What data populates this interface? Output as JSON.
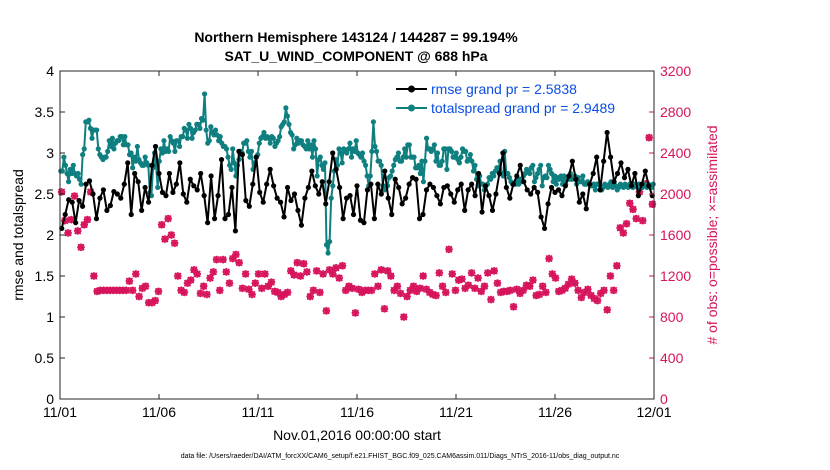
{
  "chart_data": {
    "type": "line",
    "title_line1": "Northern Hemisphere 143124 / 144287 = 99.194%",
    "title_line2": "SAT_U_WIND_COMPONENT @ 688 hPa",
    "xlabel": "Nov.01,2016 00:00:00 start",
    "ylabel_left": "rmse and totalspread",
    "ylabel_right": "# of obs: o=possible; ×=assimilated",
    "footer": "data file: /Users/raeder/DAI/ATM_forcXX/CAM6_setup/f.e21.FHIST_BGC.f09_025.CAM6assim.011/Diags_NTrS_2016-11/obs_diag_output.nc",
    "xlim": [
      0,
      30
    ],
    "ylim_left": [
      0,
      4
    ],
    "ylim_right": [
      0,
      3200
    ],
    "x_ticks": [
      0,
      5,
      10,
      15,
      20,
      25,
      30
    ],
    "x_tick_labels": [
      "11/01",
      "11/06",
      "11/11",
      "11/16",
      "11/21",
      "11/26",
      "12/01"
    ],
    "y_ticks_left": [
      "0",
      "0.5",
      "1",
      "1.5",
      "2",
      "2.5",
      "3",
      "3.5",
      "4"
    ],
    "y_ticks_right": [
      "0",
      "400",
      "800",
      "1200",
      "1600",
      "2000",
      "2400",
      "2800",
      "3200"
    ],
    "colors": {
      "rmse": "#000000",
      "spread": "#0f7f80",
      "obs": "#d6145c",
      "legend_text": "#0a4ee6"
    },
    "series": [
      {
        "name": "rmse",
        "legend": "rmse grand pr = 2.5838",
        "axis": "left",
        "values": [
          2.08,
          2.25,
          2.43,
          2.4,
          2.15,
          2.42,
          2.35,
          2.62,
          2.66,
          2.5,
          2.2,
          2.45,
          2.55,
          2.3,
          2.36,
          2.53,
          2.5,
          2.45,
          2.62,
          2.88,
          2.25,
          2.75,
          2.65,
          2.3,
          2.58,
          2.4,
          2.85,
          3.08,
          2.75,
          2.52,
          2.48,
          2.75,
          2.52,
          2.62,
          2.88,
          2.5,
          2.4,
          2.68,
          2.6,
          2.55,
          2.75,
          2.48,
          2.15,
          2.72,
          2.2,
          2.48,
          2.92,
          2.2,
          2.25,
          2.58,
          2.05,
          3.02,
          2.98,
          2.42,
          2.35,
          2.62,
          2.95,
          2.52,
          2.4,
          2.62,
          2.8,
          2.6,
          2.45,
          2.4,
          2.22,
          2.58,
          2.42,
          2.5,
          2.3,
          2.12,
          2.45,
          2.58,
          2.78,
          2.6,
          2.5,
          2.65,
          2.38,
          2.65,
          3.0,
          2.8,
          2.58,
          2.2,
          2.45,
          2.48,
          2.25,
          2.6,
          2.18,
          2.15,
          2.55,
          2.62,
          2.2,
          2.62,
          2.5,
          2.78,
          2.45,
          2.25,
          2.68,
          2.58,
          2.38,
          2.45,
          2.62,
          2.7,
          2.68,
          2.2,
          2.25,
          2.55,
          2.62,
          2.58,
          2.48,
          2.38,
          2.58,
          2.6,
          2.5,
          2.4,
          2.55,
          2.62,
          2.3,
          2.55,
          2.62,
          2.48,
          2.75,
          2.28,
          2.6,
          2.48,
          2.3,
          2.5,
          2.75,
          3.0,
          2.58,
          2.45,
          2.62,
          2.72,
          2.85,
          2.65,
          2.55,
          2.5,
          2.58,
          2.52,
          2.22,
          2.08,
          2.38,
          2.58,
          2.52,
          2.55,
          2.48,
          2.6,
          2.72,
          2.9,
          2.68,
          2.4,
          2.5,
          2.32,
          2.62,
          2.75,
          2.95,
          2.55,
          2.9,
          3.25,
          2.95,
          2.65,
          2.75,
          2.88,
          2.7,
          2.8,
          2.6,
          2.75,
          2.48,
          2.62,
          2.78,
          2.6,
          2.48
        ]
      },
      {
        "name": "totalspread",
        "legend": "totalspread grand pr = 2.9489",
        "axis": "left",
        "values": [
          2.78,
          2.78,
          2.95,
          2.85,
          2.75,
          2.65,
          2.8,
          2.75,
          2.85,
          2.75,
          2.72,
          2.75,
          2.68,
          2.62,
          2.98,
          3.05,
          3.38,
          3.38,
          3.4,
          3.3,
          3.18,
          3.28,
          3.28,
          3.28,
          3.05,
          2.98,
          2.95,
          2.92,
          2.95,
          2.95,
          3.02,
          3.15,
          3.08,
          3.18,
          3.05,
          3.12,
          3.15,
          3.15,
          3.2,
          3.2,
          3.1,
          3.2,
          3.1,
          3.1,
          2.98,
          3.0,
          2.82,
          2.95,
          2.9,
          3.08,
          2.92,
          2.88,
          2.85,
          2.85,
          2.95,
          2.88,
          2.85,
          2.52,
          2.48,
          2.82,
          3.0,
          2.85,
          2.58,
          2.9,
          3.05,
          3.0,
          3.15,
          3.02,
          3.05,
          3.02,
          3.2,
          3.15,
          3.12,
          3.02,
          3.15,
          3.15,
          3.08,
          3.2,
          3.2,
          3.3,
          3.28,
          3.18,
          3.35,
          3.3,
          3.18,
          3.25,
          3.28,
          3.35,
          3.35,
          3.3,
          3.42,
          3.4,
          3.72,
          3.28,
          3.12,
          3.15,
          3.32,
          3.25,
          3.22,
          3.28,
          3.22,
          3.15,
          3.2,
          3.12,
          3.08,
          3.08,
          3.05,
          2.95,
          2.85,
          2.8,
          3.05,
          2.88,
          2.72,
          2.85,
          2.92,
          3.02,
          3.0,
          3.12,
          3.12,
          3.15,
          3.02,
          2.95,
          3.02,
          2.8,
          2.88,
          2.95,
          2.98,
          3.12,
          3.18,
          3.2,
          3.25,
          3.18,
          3.2,
          3.18,
          3.12,
          3.2,
          3.18,
          3.08,
          3.12,
          3.15,
          3.2,
          3.32,
          3.35,
          3.38,
          3.55,
          3.45,
          3.35,
          3.25,
          3.22,
          3.05,
          3.1,
          3.18,
          3.12,
          3.15,
          3.15,
          3.1,
          3.08,
          3.05,
          3.15,
          3.05,
          3.1,
          2.95,
          3.15,
          3.05,
          2.72,
          2.92,
          2.95,
          2.85,
          2.8,
          2.88,
          1.88,
          1.78,
          1.92,
          2.45,
          2.6,
          2.78,
          2.92,
          2.85,
          3.05,
          3.0,
          2.88,
          3.05,
          3.02,
          3.0,
          3.05,
          3.12,
          2.95,
          3.05,
          3.02,
          3.15,
          3.0,
          2.98,
          2.95,
          3.0,
          2.9,
          2.85,
          2.72,
          2.6,
          2.72,
          3.02,
          3.38,
          3.08,
          3.02,
          2.9,
          2.9,
          2.85,
          2.6,
          2.55,
          2.6,
          2.6,
          2.7,
          2.72,
          2.78,
          2.85,
          2.92,
          2.95,
          3.0,
          2.9,
          2.9,
          2.95,
          3.05,
          2.95,
          3.1,
          3.1,
          2.95,
          2.95,
          2.95,
          2.82,
          2.82,
          2.85,
          2.75,
          2.9,
          2.65,
          2.9,
          3.18,
          3.05,
          3.05,
          3.02,
          3.05,
          3.1,
          2.9,
          3.0,
          2.85,
          2.85,
          2.9,
          3.05,
          3.05,
          2.8,
          3.05,
          3.05,
          3.02,
          2.95,
          2.95,
          3.0,
          2.92,
          2.88,
          2.95,
          3.05,
          3.02,
          3.02,
          2.9,
          2.92,
          2.98,
          2.9,
          2.78,
          2.85,
          2.68,
          2.6,
          2.72,
          2.62,
          2.62,
          2.55,
          2.6,
          2.62,
          2.7,
          2.68,
          2.75,
          2.72,
          2.78,
          2.82,
          2.8,
          2.9,
          2.75,
          2.72,
          3.02,
          2.75,
          2.75,
          2.7,
          2.65,
          2.62,
          2.62,
          2.62,
          2.68,
          2.62,
          2.68,
          2.65,
          2.72,
          2.75,
          2.8,
          2.78,
          2.75,
          2.82,
          2.85,
          2.65,
          2.7,
          2.75,
          2.8,
          2.85,
          2.6,
          2.7,
          2.72,
          2.7,
          2.85,
          2.8,
          2.75,
          2.65,
          2.72,
          2.62,
          2.7,
          2.68,
          2.72,
          2.62,
          2.72,
          2.62,
          2.7,
          2.68,
          2.75,
          2.68,
          2.7,
          2.72,
          2.62,
          2.7,
          2.65,
          2.65,
          2.72,
          2.62,
          2.62,
          2.65,
          2.62,
          2.6,
          2.6,
          2.62,
          2.55,
          2.62,
          2.62,
          2.6,
          2.55,
          2.58,
          2.62,
          2.6,
          2.58,
          2.62,
          2.65,
          2.58,
          2.62,
          2.6,
          2.55,
          2.58,
          2.62,
          2.6,
          2.58,
          2.62,
          2.6,
          2.58,
          2.62,
          2.6,
          2.58,
          2.62,
          2.6,
          2.58,
          2.62,
          2.6,
          2.58,
          2.62,
          2.6,
          2.58,
          2.62,
          2.6,
          2.58,
          2.62
        ]
      },
      {
        "name": "obs_possible",
        "axis": "right",
        "values": [
          2020,
          1740,
          1620,
          1750,
          1980,
          1640,
          1480,
          1700,
          1750,
          2020,
          1200,
          1050,
          1060,
          1060,
          1060,
          1060,
          1060,
          1060,
          1060,
          1060,
          1060,
          1150,
          1060,
          1220,
          1000,
          1080,
          1100,
          940,
          940,
          960,
          1050,
          1700,
          1560,
          1760,
          1600,
          1520,
          1200,
          1060,
          1040,
          1130,
          1160,
          1260,
          1220,
          1030,
          1100,
          1020,
          1180,
          1240,
          1360,
          1060,
          1360,
          1240,
          1130,
          1370,
          1410,
          1330,
          1080,
          1220,
          1070,
          1020,
          1130,
          1220,
          1080,
          1220,
          1100,
          1140,
          1050,
          1040,
          1000,
          1020,
          1040,
          1250,
          1210,
          1330,
          1200,
          1320,
          1240,
          1000,
          1060,
          1250,
          1040,
          1220,
          860,
          1260,
          1220,
          1280,
          1180,
          1300,
          1060,
          1100,
          1080,
          840,
          1070,
          1040,
          1060,
          1060,
          1060,
          1220,
          1100,
          1260,
          880,
          1250,
          1200,
          1060,
          1100,
          1030,
          800,
          1000,
          1060,
          1100,
          1050,
          1080,
          1200,
          1070,
          1040,
          1020,
          1010,
          1230,
          1100,
          1040,
          1460,
          1220,
          1060,
          1160,
          1170,
          1080,
          1110,
          1230,
          1080,
          1180,
          1050,
          1100,
          1230,
          970,
          1250,
          1130,
          1040,
          1050,
          1050,
          1060,
          900,
          1070,
          1030,
          1060,
          1110,
          1100,
          1160,
          1010,
          1020,
          1100,
          1040,
          1370,
          1220,
          1180,
          1050,
          1060,
          1080,
          1120,
          1170,
          1130,
          1060,
          990,
          1040,
          1070,
          1010,
          980,
          960,
          1030,
          1060,
          870,
          1200,
          1060,
          1300,
          1670,
          1620,
          1710,
          1910,
          1850,
          1760,
          2020,
          1740,
          2100,
          2550,
          1900
        ]
      },
      {
        "name": "obs_assimilated",
        "axis": "right",
        "values": [
          2020,
          1740,
          1620,
          1750,
          1980,
          1640,
          1480,
          1700,
          1750,
          2020,
          1200,
          1050,
          1060,
          1060,
          1060,
          1060,
          1060,
          1060,
          1060,
          1060,
          1060,
          1150,
          1060,
          1220,
          1000,
          1080,
          1100,
          940,
          940,
          960,
          1050,
          1700,
          1560,
          1760,
          1600,
          1520,
          1200,
          1060,
          1040,
          1130,
          1160,
          1260,
          1220,
          1030,
          1100,
          1020,
          1180,
          1240,
          1360,
          1060,
          1360,
          1240,
          1130,
          1370,
          1410,
          1330,
          1080,
          1220,
          1070,
          1020,
          1130,
          1220,
          1080,
          1220,
          1100,
          1140,
          1050,
          1040,
          1000,
          1020,
          1040,
          1250,
          1210,
          1330,
          1200,
          1320,
          1240,
          1000,
          1060,
          1250,
          1040,
          1220,
          860,
          1260,
          1220,
          1280,
          1180,
          1300,
          1060,
          1100,
          1080,
          840,
          1070,
          1040,
          1060,
          1060,
          1060,
          1220,
          1100,
          1260,
          880,
          1250,
          1200,
          1060,
          1100,
          1030,
          800,
          1000,
          1060,
          1100,
          1050,
          1080,
          1200,
          1070,
          1040,
          1020,
          1010,
          1230,
          1100,
          1040,
          1460,
          1220,
          1060,
          1160,
          1170,
          1080,
          1110,
          1230,
          1080,
          1180,
          1050,
          1100,
          1230,
          970,
          1250,
          1130,
          1040,
          1050,
          1050,
          1060,
          900,
          1070,
          1030,
          1060,
          1110,
          1100,
          1160,
          1010,
          1020,
          1100,
          1040,
          1370,
          1220,
          1180,
          1050,
          1060,
          1080,
          1120,
          1170,
          1130,
          1060,
          990,
          1040,
          1070,
          1010,
          980,
          960,
          1030,
          1060,
          870,
          1200,
          1060,
          1300,
          1670,
          1620,
          1710,
          1910,
          1850,
          1760,
          2020,
          1740,
          2100,
          2550,
          1900
        ]
      }
    ]
  }
}
